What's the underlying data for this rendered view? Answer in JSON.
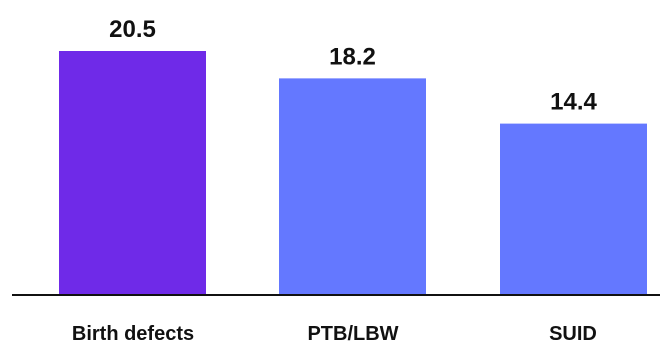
{
  "chart_data": {
    "type": "bar",
    "categories": [
      "Birth defects",
      "PTB/LBW",
      "SUID"
    ],
    "values": [
      20.5,
      18.2,
      14.4
    ],
    "value_labels": [
      "20.5",
      "18.2",
      "14.4"
    ],
    "bar_colors": [
      "#6f2ae8",
      "#6478ff",
      "#6478ff"
    ],
    "title": "",
    "xlabel": "",
    "ylabel": "",
    "ylim": [
      0,
      20.5
    ],
    "grid": false,
    "legend": "none"
  }
}
